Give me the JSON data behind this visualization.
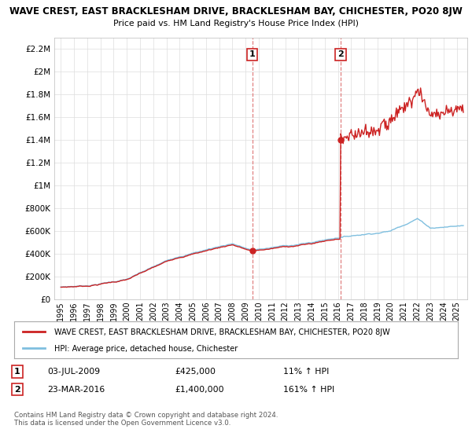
{
  "title_line1": "WAVE CREST, EAST BRACKLESHAM DRIVE, BRACKLESHAM BAY, CHICHESTER, PO20 8JW",
  "title_line2": "Price paid vs. HM Land Registry's House Price Index (HPI)",
  "hpi_color": "#7fbfdf",
  "sale_color": "#cc2222",
  "dashed_color": "#e08080",
  "background_color": "#ffffff",
  "grid_color": "#dddddd",
  "ylim": [
    0,
    2300000
  ],
  "yticks": [
    0,
    200000,
    400000,
    600000,
    800000,
    1000000,
    1200000,
    1400000,
    1600000,
    1800000,
    2000000,
    2200000
  ],
  "ytick_labels": [
    "£0",
    "£200K",
    "£400K",
    "£600K",
    "£800K",
    "£1M",
    "£1.2M",
    "£1.4M",
    "£1.6M",
    "£1.8M",
    "£2M",
    "£2.2M"
  ],
  "xlim_start": 1994.5,
  "xlim_end": 2025.8,
  "xtick_years": [
    1995,
    1996,
    1997,
    1998,
    1999,
    2000,
    2001,
    2002,
    2003,
    2004,
    2005,
    2006,
    2007,
    2008,
    2009,
    2010,
    2011,
    2012,
    2013,
    2014,
    2015,
    2016,
    2017,
    2018,
    2019,
    2020,
    2021,
    2022,
    2023,
    2024,
    2025
  ],
  "sale1_x": 2009.5,
  "sale1_y": 425000,
  "sale1_label": "1",
  "sale2_x": 2016.2,
  "sale2_y": 1400000,
  "sale2_label": "2",
  "legend_sale_text": "WAVE CREST, EAST BRACKLESHAM DRIVE, BRACKLESHAM BAY, CHICHESTER, PO20 8JW",
  "legend_hpi_text": "HPI: Average price, detached house, Chichester",
  "annotation1_num": "1",
  "annotation1_date": "03-JUL-2009",
  "annotation1_price": "£425,000",
  "annotation1_hpi": "11% ↑ HPI",
  "annotation2_num": "2",
  "annotation2_date": "23-MAR-2016",
  "annotation2_price": "£1,400,000",
  "annotation2_hpi": "161% ↑ HPI",
  "footer": "Contains HM Land Registry data © Crown copyright and database right 2024.\nThis data is licensed under the Open Government Licence v3.0."
}
